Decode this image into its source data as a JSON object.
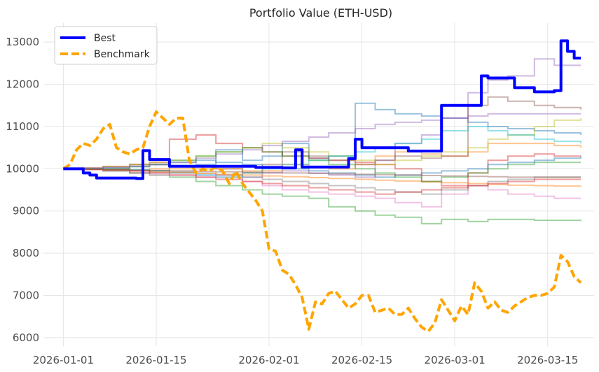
{
  "chart_data": {
    "type": "line",
    "title": "Portfolio Value (ETH-USD)",
    "xlabel": "",
    "ylabel": "",
    "x_ticks": [
      "2026-01-01",
      "2026-01-15",
      "2026-02-01",
      "2026-02-15",
      "2026-03-01",
      "2026-03-15"
    ],
    "y_ticks": [
      6000,
      7000,
      8000,
      9000,
      10000,
      11000,
      12000,
      13000
    ],
    "xlim": [
      "2025-12-29",
      "2026-03-22"
    ],
    "ylim": [
      5800,
      13450
    ],
    "grid": true,
    "legend_position": "upper-left",
    "series": [
      {
        "name": "Best",
        "color": "#0000ff",
        "style": "solid",
        "x": [
          "2026-01-01",
          "2026-01-02",
          "2026-01-03",
          "2026-01-04",
          "2026-01-05",
          "2026-01-06",
          "2026-01-09",
          "2026-01-12",
          "2026-01-13",
          "2026-01-14",
          "2026-01-16",
          "2026-01-17",
          "2026-01-18",
          "2026-01-20",
          "2026-01-25",
          "2026-01-30",
          "2026-02-03",
          "2026-02-05",
          "2026-02-06",
          "2026-02-10",
          "2026-02-13",
          "2026-02-14",
          "2026-02-15",
          "2026-02-20",
          "2026-02-22",
          "2026-02-25",
          "2026-02-26",
          "2026-02-27",
          "2026-03-01",
          "2026-03-03",
          "2026-03-05",
          "2026-03-06",
          "2026-03-09",
          "2026-03-10",
          "2026-03-11",
          "2026-03-13",
          "2026-03-14",
          "2026-03-16",
          "2026-03-17",
          "2026-03-18",
          "2026-03-19",
          "2026-03-20"
        ],
        "values": [
          10000,
          10000,
          10000,
          9900,
          9850,
          9780,
          9780,
          9770,
          10430,
          10220,
          10220,
          10060,
          10060,
          10060,
          10060,
          10030,
          10020,
          10450,
          10040,
          10040,
          10240,
          10700,
          10500,
          10500,
          10420,
          10420,
          10420,
          11500,
          11500,
          11500,
          12200,
          12150,
          12150,
          11920,
          11920,
          11820,
          11820,
          11850,
          13030,
          12780,
          12620,
          12620
        ]
      },
      {
        "name": "Benchmark",
        "color": "#ffa500",
        "style": "dashed",
        "x": [
          "2026-01-01",
          "2026-01-02",
          "2026-01-03",
          "2026-01-04",
          "2026-01-05",
          "2026-01-06",
          "2026-01-07",
          "2026-01-08",
          "2026-01-09",
          "2026-01-10",
          "2026-01-11",
          "2026-01-12",
          "2026-01-13",
          "2026-01-14",
          "2026-01-15",
          "2026-01-16",
          "2026-01-17",
          "2026-01-18",
          "2026-01-19",
          "2026-01-20",
          "2026-01-21",
          "2026-01-22",
          "2026-01-23",
          "2026-01-24",
          "2026-01-25",
          "2026-01-26",
          "2026-01-27",
          "2026-01-28",
          "2026-01-29",
          "2026-01-30",
          "2026-01-31",
          "2026-02-01",
          "2026-02-02",
          "2026-02-03",
          "2026-02-04",
          "2026-02-05",
          "2026-02-06",
          "2026-02-07",
          "2026-02-08",
          "2026-02-09",
          "2026-02-10",
          "2026-02-11",
          "2026-02-12",
          "2026-02-13",
          "2026-02-14",
          "2026-02-15",
          "2026-02-16",
          "2026-02-17",
          "2026-02-18",
          "2026-02-19",
          "2026-02-20",
          "2026-02-21",
          "2026-02-22",
          "2026-02-23",
          "2026-02-24",
          "2026-02-25",
          "2026-02-26",
          "2026-02-27",
          "2026-02-28",
          "2026-03-01",
          "2026-03-02",
          "2026-03-03",
          "2026-03-04",
          "2026-03-05",
          "2026-03-06",
          "2026-03-07",
          "2026-03-08",
          "2026-03-09",
          "2026-03-10",
          "2026-03-11",
          "2026-03-12",
          "2026-03-13",
          "2026-03-14",
          "2026-03-15",
          "2026-03-16",
          "2026-03-17",
          "2026-03-18",
          "2026-03-19",
          "2026-03-20"
        ],
        "values": [
          10000,
          10100,
          10450,
          10600,
          10550,
          10700,
          10950,
          11050,
          10500,
          10400,
          10350,
          10450,
          10500,
          11000,
          11350,
          11200,
          11050,
          11200,
          11200,
          10200,
          9900,
          10000,
          9950,
          10050,
          9950,
          9650,
          9950,
          9650,
          9450,
          9250,
          9000,
          8100,
          8050,
          7600,
          7500,
          7250,
          6950,
          6200,
          6850,
          6800,
          7050,
          7100,
          6900,
          6700,
          6800,
          7000,
          7000,
          6600,
          6650,
          6700,
          6550,
          6550,
          6700,
          6450,
          6250,
          6150,
          6350,
          6900,
          6650,
          6400,
          6750,
          6550,
          7300,
          7100,
          6700,
          6850,
          6650,
          6600,
          6750,
          6850,
          6950,
          7000,
          7000,
          7050,
          7200,
          7950,
          7800,
          7450,
          7300
        ]
      }
    ],
    "background_series_note": "",
    "background_series": [
      {
        "color": "#1f77b4",
        "values": [
          10000,
          10000,
          9950,
          9900,
          9950,
          10050,
          10100,
          10450,
          10200,
          10300,
          10600,
          10250,
          10300,
          11550,
          11400,
          11300,
          11250,
          11200,
          11100,
          11000,
          10950,
          10900,
          10850,
          10800
        ]
      },
      {
        "color": "#ff7f0e",
        "values": [
          10000,
          9980,
          9960,
          9900,
          10000,
          10000,
          10000,
          10000,
          9950,
          9950,
          10100,
          10050,
          10000,
          10100,
          10300,
          10400,
          10350,
          10300,
          10400,
          10600,
          10600,
          10600,
          10550,
          10500
        ]
      },
      {
        "color": "#2ca02c",
        "values": [
          10000,
          9990,
          9950,
          9900,
          9850,
          9800,
          9700,
          9600,
          9500,
          9400,
          9350,
          9300,
          9100,
          9000,
          8900,
          8850,
          8700,
          8800,
          8750,
          8800,
          8800,
          8780,
          8780,
          8760
        ]
      },
      {
        "color": "#d62728",
        "values": [
          10000,
          10020,
          10050,
          10100,
          10150,
          10700,
          10800,
          10600,
          10500,
          10400,
          10300,
          10250,
          10200,
          10150,
          10100,
          10000,
          9700,
          9600,
          9900,
          10200,
          10300,
          10350,
          10300,
          10300
        ]
      },
      {
        "color": "#9467bd",
        "values": [
          10000,
          9990,
          9980,
          9950,
          9900,
          9900,
          9850,
          9850,
          9800,
          9900,
          9950,
          9900,
          9850,
          9800,
          10200,
          10600,
          10800,
          11200,
          11800,
          12100,
          12200,
          12600,
          12450,
          12450
        ]
      },
      {
        "color": "#8c564b",
        "values": [
          10000,
          10000,
          10050,
          10100,
          10100,
          10050,
          10050,
          10000,
          9900,
          10100,
          10400,
          10300,
          10200,
          10100,
          10200,
          10300,
          10250,
          10300,
          11500,
          11700,
          11600,
          11500,
          11450,
          11400
        ]
      },
      {
        "color": "#e377c2",
        "values": [
          10000,
          9980,
          9950,
          9900,
          9850,
          9850,
          9800,
          9800,
          9700,
          9600,
          9500,
          9450,
          9400,
          9350,
          9300,
          9200,
          9100,
          9400,
          9600,
          9500,
          9400,
          9350,
          9300,
          9300
        ]
      },
      {
        "color": "#7f7f7f",
        "values": [
          10000,
          9990,
          9980,
          9970,
          9950,
          9930,
          9900,
          9850,
          9800,
          9750,
          9700,
          9650,
          9600,
          9550,
          9500,
          9450,
          9400,
          9500,
          9600,
          9700,
          9750,
          9800,
          9800,
          9800
        ]
      },
      {
        "color": "#bcbd22",
        "values": [
          10000,
          10010,
          10050,
          10100,
          10150,
          10200,
          10300,
          10400,
          10500,
          10600,
          10500,
          10400,
          10300,
          10200,
          10100,
          10200,
          10300,
          10400,
          10500,
          10700,
          10800,
          11000,
          11150,
          11200
        ]
      },
      {
        "color": "#17becf",
        "values": [
          10000,
          10000,
          9990,
          9980,
          9950,
          9900,
          9850,
          9800,
          9900,
          10000,
          10100,
          10200,
          10300,
          10400,
          10500,
          10600,
          10700,
          10900,
          11000,
          10900,
          10800,
          10700,
          10650,
          10600
        ]
      },
      {
        "color": "#1f77b4",
        "values": [
          10000,
          10010,
          10020,
          10050,
          10100,
          10150,
          10200,
          10150,
          10100,
          10050,
          10000,
          9950,
          9900,
          9850,
          9800,
          9850,
          9900,
          9950,
          10000,
          10100,
          10150,
          10200,
          10250,
          10300
        ]
      },
      {
        "color": "#ff7f0e",
        "values": [
          10000,
          9990,
          9970,
          9950,
          9930,
          9910,
          9890,
          9870,
          9850,
          9830,
          9810,
          9790,
          9770,
          9750,
          9730,
          9710,
          9690,
          9670,
          9650,
          9630,
          9610,
          9600,
          9590,
          9580
        ]
      },
      {
        "color": "#2ca02c",
        "values": [
          10000,
          10000,
          10000,
          10050,
          10100,
          10200,
          10300,
          10400,
          10500,
          10400,
          10300,
          10200,
          10100,
          10000,
          9900,
          9800,
          9700,
          9800,
          9900,
          10000,
          10100,
          10150,
          10150,
          10150
        ]
      },
      {
        "color": "#d62728",
        "values": [
          10000,
          9990,
          9980,
          9950,
          9900,
          9850,
          9800,
          9750,
          9700,
          9650,
          9600,
          9550,
          9500,
          9450,
          9400,
          9450,
          9500,
          9550,
          9600,
          9650,
          9700,
          9750,
          9750,
          9750
        ]
      },
      {
        "color": "#9467bd",
        "values": [
          10000,
          10010,
          10030,
          10060,
          10100,
          10150,
          10250,
          10350,
          10450,
          10550,
          10650,
          10750,
          10850,
          10950,
          11050,
          11100,
          11150,
          11200,
          11250,
          11300,
          11300,
          11300,
          11300,
          11300
        ]
      },
      {
        "color": "#8c564b",
        "values": [
          10000,
          9990,
          9980,
          9970,
          9960,
          9950,
          9940,
          9930,
          9920,
          9910,
          9900,
          9890,
          9880,
          9870,
          9860,
          9850,
          9840,
          9830,
          9820,
          9810,
          9800,
          9800,
          9800,
          9800
        ]
      }
    ]
  }
}
